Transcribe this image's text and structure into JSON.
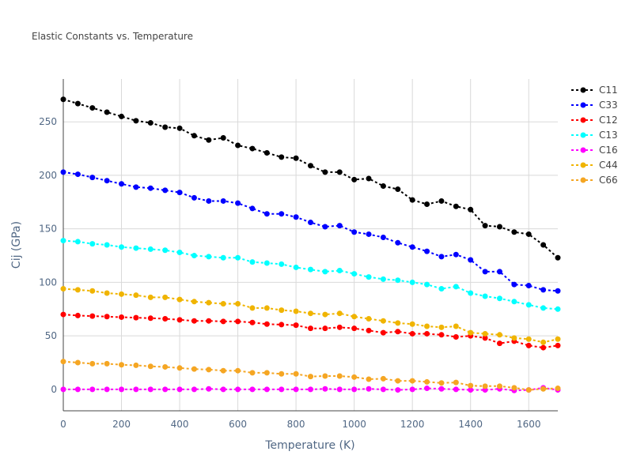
{
  "chart_data": {
    "type": "line",
    "title": "Elastic Constants vs. Temperature",
    "xlabel": "Temperature (K)",
    "ylabel": "Cij (GPa)",
    "xlim": [
      0,
      1700
    ],
    "ylim": [
      -20,
      290
    ],
    "xticks": [
      0,
      200,
      400,
      600,
      800,
      1000,
      1200,
      1400,
      1600
    ],
    "yticks": [
      0,
      50,
      100,
      150,
      200,
      250
    ],
    "grid": true,
    "legend_position": "top-right",
    "x": [
      0,
      50,
      100,
      150,
      200,
      250,
      300,
      350,
      400,
      450,
      500,
      550,
      600,
      650,
      700,
      750,
      800,
      850,
      900,
      950,
      1000,
      1050,
      1100,
      1150,
      1200,
      1250,
      1300,
      1350,
      1400,
      1450,
      1500,
      1550,
      1600,
      1650,
      1700
    ],
    "series": [
      {
        "name": "C11",
        "color": "#000000",
        "values": [
          271,
          267,
          263,
          259,
          255,
          251,
          249,
          245,
          244,
          237,
          233,
          235,
          228,
          225,
          221,
          217,
          216,
          209,
          203,
          203,
          196,
          197,
          190,
          187,
          177,
          173,
          176,
          171,
          168,
          153,
          152,
          147,
          145,
          135,
          123
        ]
      },
      {
        "name": "C33",
        "color": "#0000ff",
        "values": [
          203,
          201,
          198,
          195,
          192,
          189,
          188,
          186,
          184,
          179,
          176,
          176,
          174,
          169,
          164,
          164,
          161,
          156,
          152,
          153,
          147,
          145,
          142,
          137,
          133,
          129,
          124,
          126,
          121,
          110,
          110,
          98,
          97,
          93,
          92
        ]
      },
      {
        "name": "C12",
        "color": "#ff0000",
        "values": [
          70,
          69,
          68.5,
          68,
          67.5,
          67,
          66.5,
          66,
          65,
          64,
          64,
          63.5,
          63.5,
          62.5,
          61,
          60.5,
          60,
          57,
          57,
          58,
          57,
          55,
          53,
          54,
          52,
          52,
          51,
          49,
          50,
          48,
          43,
          45,
          41,
          39,
          41
        ]
      },
      {
        "name": "C13",
        "color": "#00ffff",
        "values": [
          139,
          138,
          136,
          135,
          133,
          132,
          131,
          130,
          128,
          125,
          124,
          123,
          123,
          119,
          118,
          117,
          114,
          112,
          110,
          111,
          108,
          105,
          103,
          102,
          100,
          98,
          94,
          96,
          90,
          87,
          85,
          82,
          79,
          76,
          75
        ]
      },
      {
        "name": "C16",
        "color": "#ff00ff",
        "values": [
          0,
          0,
          0,
          0,
          0,
          0,
          0,
          0,
          0,
          0,
          0.5,
          0,
          0,
          0,
          0,
          0,
          0,
          0,
          0.5,
          0,
          0,
          0.5,
          0,
          -0.5,
          0,
          1,
          0.5,
          0,
          -0.5,
          -0.5,
          0.5,
          -1,
          -0.5,
          1.5,
          -0.5
        ]
      },
      {
        "name": "C44",
        "color": "#f0b400",
        "values": [
          94,
          93,
          92,
          90,
          89,
          88,
          86,
          86,
          84,
          82,
          81,
          80,
          80,
          76,
          76,
          74,
          73,
          71,
          70,
          71,
          68,
          66,
          64,
          62,
          61,
          59,
          58,
          59,
          53,
          52,
          51,
          48,
          47,
          44,
          47
        ]
      },
      {
        "name": "C66",
        "color": "#f5a623",
        "values": [
          26,
          25,
          24,
          24,
          23,
          22.5,
          21.5,
          21,
          20,
          19,
          18.5,
          17.5,
          17.5,
          15.5,
          15.5,
          14.5,
          14.5,
          12,
          12.5,
          12.5,
          11.5,
          9.5,
          10,
          8,
          8,
          7,
          6,
          6.5,
          3.5,
          3,
          3,
          1.5,
          -0.5,
          0.5,
          1
        ]
      }
    ]
  }
}
